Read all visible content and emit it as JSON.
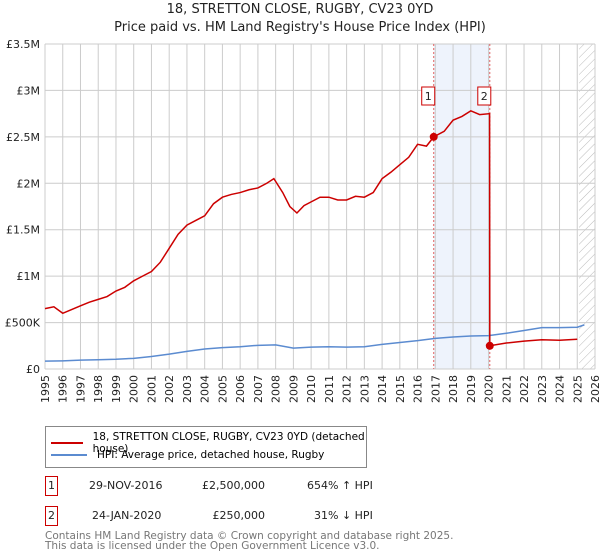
{
  "chart_data": {
    "type": "line",
    "title": "18, STRETTON CLOSE, RUGBY, CV23 0YD",
    "subtitle": "Price paid vs. HM Land Registry's House Price Index (HPI)",
    "xlim": [
      1995,
      2026
    ],
    "ylim": [
      0,
      3500000
    ],
    "y_ticks": [
      {
        "v": 0,
        "label": "£0"
      },
      {
        "v": 500000,
        "label": "£500K"
      },
      {
        "v": 1000000,
        "label": "£1M"
      },
      {
        "v": 1500000,
        "label": "£1.5M"
      },
      {
        "v": 2000000,
        "label": "£2M"
      },
      {
        "v": 2500000,
        "label": "£2.5M"
      },
      {
        "v": 3000000,
        "label": "£3M"
      },
      {
        "v": 3500000,
        "label": "£3.5M"
      }
    ],
    "x_ticks": [
      "1995",
      "1996",
      "1997",
      "1998",
      "1999",
      "2000",
      "2001",
      "2002",
      "2003",
      "2004",
      "2005",
      "2006",
      "2007",
      "2008",
      "2009",
      "2010",
      "2011",
      "2012",
      "2013",
      "2014",
      "2015",
      "2016",
      "2017",
      "2018",
      "2019",
      "2020",
      "2021",
      "2022",
      "2023",
      "2024",
      "2025",
      "2026"
    ],
    "grid": true,
    "series": [
      {
        "name": "18, STRETTON CLOSE, RUGBY, CV23 0YD (detached house)",
        "color": "#cc0000",
        "points": [
          [
            1995,
            650000
          ],
          [
            1995.5,
            670000
          ],
          [
            1996,
            600000
          ],
          [
            1996.5,
            640000
          ],
          [
            1997,
            680000
          ],
          [
            1997.5,
            720000
          ],
          [
            1998,
            750000
          ],
          [
            1998.5,
            780000
          ],
          [
            1999,
            840000
          ],
          [
            1999.5,
            880000
          ],
          [
            2000,
            950000
          ],
          [
            2000.5,
            1000000
          ],
          [
            2001,
            1050000
          ],
          [
            2001.5,
            1150000
          ],
          [
            2002,
            1300000
          ],
          [
            2002.5,
            1450000
          ],
          [
            2003,
            1550000
          ],
          [
            2003.5,
            1600000
          ],
          [
            2004,
            1650000
          ],
          [
            2004.5,
            1780000
          ],
          [
            2005,
            1850000
          ],
          [
            2005.5,
            1880000
          ],
          [
            2006,
            1900000
          ],
          [
            2006.5,
            1930000
          ],
          [
            2007,
            1950000
          ],
          [
            2007.5,
            2000000
          ],
          [
            2007.9,
            2050000
          ],
          [
            2008.4,
            1900000
          ],
          [
            2008.8,
            1750000
          ],
          [
            2009.2,
            1680000
          ],
          [
            2009.6,
            1760000
          ],
          [
            2010,
            1800000
          ],
          [
            2010.5,
            1850000
          ],
          [
            2011,
            1850000
          ],
          [
            2011.5,
            1820000
          ],
          [
            2012,
            1820000
          ],
          [
            2012.5,
            1860000
          ],
          [
            2013,
            1850000
          ],
          [
            2013.5,
            1900000
          ],
          [
            2014,
            2050000
          ],
          [
            2014.5,
            2120000
          ],
          [
            2015,
            2200000
          ],
          [
            2015.5,
            2280000
          ],
          [
            2016,
            2420000
          ],
          [
            2016.5,
            2400000
          ],
          [
            2016.91,
            2500000
          ],
          [
            2017.5,
            2560000
          ],
          [
            2018,
            2680000
          ],
          [
            2018.5,
            2720000
          ],
          [
            2019,
            2780000
          ],
          [
            2019.5,
            2740000
          ],
          [
            2020.06,
            2750000
          ],
          [
            2020.07,
            250000
          ],
          [
            2021,
            280000
          ],
          [
            2022,
            300000
          ],
          [
            2023,
            315000
          ],
          [
            2024,
            310000
          ],
          [
            2025,
            320000
          ]
        ]
      },
      {
        "name": "HPI: Average price, detached house, Rugby",
        "color": "#5b8bd0",
        "points": [
          [
            1995,
            85000
          ],
          [
            1996,
            88000
          ],
          [
            1997,
            95000
          ],
          [
            1998,
            100000
          ],
          [
            1999,
            105000
          ],
          [
            2000,
            115000
          ],
          [
            2001,
            135000
          ],
          [
            2002,
            160000
          ],
          [
            2003,
            190000
          ],
          [
            2004,
            215000
          ],
          [
            2005,
            230000
          ],
          [
            2006,
            240000
          ],
          [
            2007,
            255000
          ],
          [
            2008,
            260000
          ],
          [
            2009,
            225000
          ],
          [
            2010,
            235000
          ],
          [
            2011,
            240000
          ],
          [
            2012,
            235000
          ],
          [
            2013,
            240000
          ],
          [
            2014,
            265000
          ],
          [
            2015,
            285000
          ],
          [
            2016,
            305000
          ],
          [
            2017,
            330000
          ],
          [
            2018,
            345000
          ],
          [
            2019,
            355000
          ],
          [
            2020,
            360000
          ],
          [
            2021,
            385000
          ],
          [
            2022,
            415000
          ],
          [
            2023,
            445000
          ],
          [
            2024,
            445000
          ],
          [
            2025,
            450000
          ],
          [
            2025.4,
            475000
          ]
        ]
      }
    ],
    "annotations": [
      {
        "id": "1",
        "x": 2016.91,
        "y": 2500000
      },
      {
        "id": "2",
        "x": 2020.07,
        "y": 250000
      }
    ],
    "shaded_range": [
      2016.91,
      2020.07
    ],
    "forecast_hatch_from": 2025.1
  },
  "legend": {
    "items": [
      "18, STRETTON CLOSE, RUGBY, CV23 0YD (detached house)",
      "HPI: Average price, detached house, Rugby"
    ]
  },
  "sales": [
    {
      "id": "1",
      "date": "29-NOV-2016",
      "price": "£2,500,000",
      "hpi": "654% ↑ HPI"
    },
    {
      "id": "2",
      "date": "24-JAN-2020",
      "price": "£250,000",
      "hpi": "31% ↓ HPI"
    }
  ],
  "footer": {
    "line1": "Contains HM Land Registry data © Crown copyright and database right 2025.",
    "line2": "This data is licensed under the Open Government Licence v3.0."
  }
}
